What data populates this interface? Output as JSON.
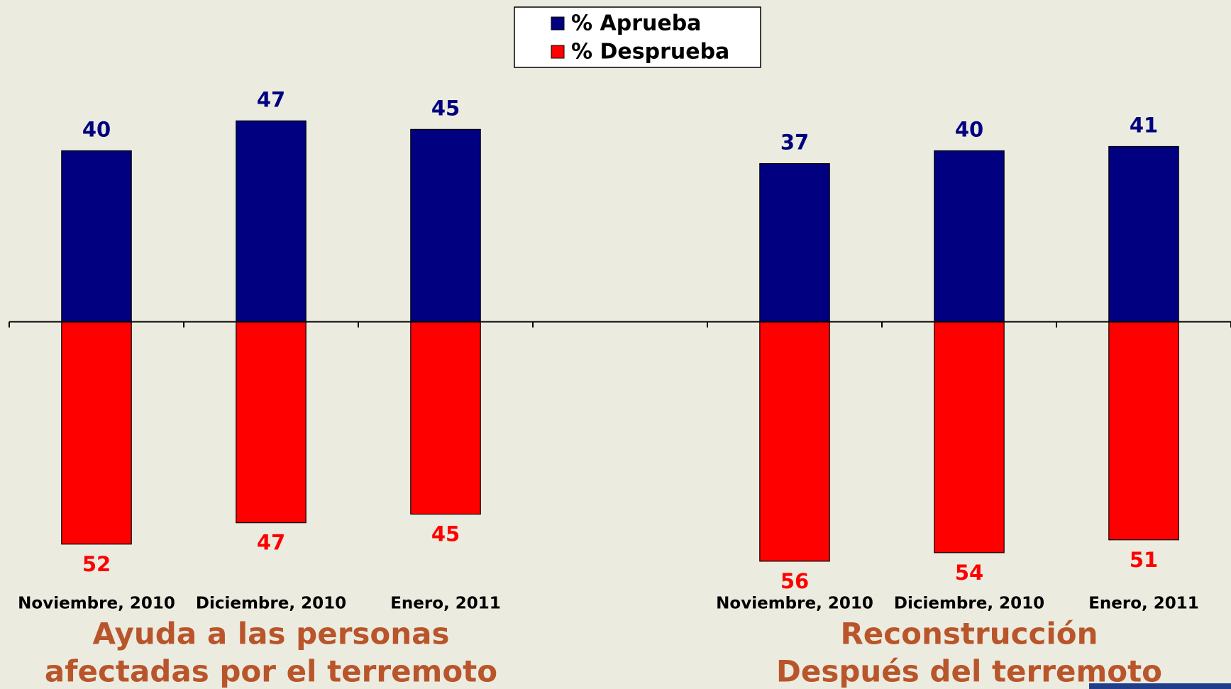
{
  "chart_data": {
    "type": "bar",
    "categories": [
      "Noviembre, 2010",
      "Diciembre, 2010",
      "Enero, 2011",
      null,
      "Noviembre, 2010",
      "Diciembre, 2010",
      "Enero, 2011"
    ],
    "series": [
      {
        "name": "% Aprueba",
        "color": "#000080",
        "values": [
          40,
          47,
          45,
          null,
          37,
          40,
          41
        ]
      },
      {
        "name": "% Desprueba",
        "color": "#ff0000",
        "values": [
          -52,
          -47,
          -45,
          null,
          -56,
          -54,
          -51
        ],
        "value_labels": [
          "52",
          "47",
          "45",
          null,
          "56",
          "54",
          "51"
        ]
      }
    ],
    "ylim": [
      -60,
      60
    ],
    "legend": "top",
    "annotations": [
      [
        "Ayuda a las personas",
        "afectadas por el terremoto"
      ],
      [
        "Reconstrucción",
        "Después del terremoto"
      ]
    ],
    "annotation_color": "#b9552a"
  }
}
